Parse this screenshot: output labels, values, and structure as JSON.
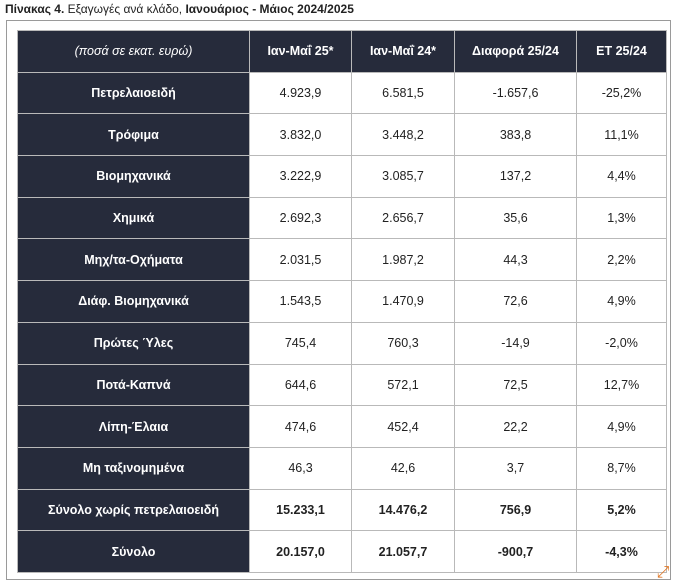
{
  "caption": {
    "prefix": "Πίνακας 4.",
    "middle": " Εξαγωγές ανά κλάδο, ",
    "period": "Ιανουάριος - Μάιος 2024/2025"
  },
  "table": {
    "headers": [
      "(ποσά σε εκατ. ευρώ)",
      "Ιαν-Μαΐ 25*",
      "Ιαν-Μαΐ 24*",
      "Διαφορά 25/24",
      "ΕΤ 25/24"
    ],
    "rows": [
      {
        "label": "Πετρελαιοειδή",
        "v1": "4.923,9",
        "v2": "6.581,5",
        "diff": "-1.657,6",
        "et": "-25,2%"
      },
      {
        "label": "Τρόφιμα",
        "v1": "3.832,0",
        "v2": "3.448,2",
        "diff": "383,8",
        "et": "11,1%"
      },
      {
        "label": "Βιομηχανικά",
        "v1": "3.222,9",
        "v2": "3.085,7",
        "diff": "137,2",
        "et": "4,4%"
      },
      {
        "label": "Χημικά",
        "v1": "2.692,3",
        "v2": "2.656,7",
        "diff": "35,6",
        "et": "1,3%"
      },
      {
        "label": "Μηχ/τα-Οχήματα",
        "v1": "2.031,5",
        "v2": "1.987,2",
        "diff": "44,3",
        "et": "2,2%"
      },
      {
        "label": "Διάφ. Βιομηχανικά",
        "v1": "1.543,5",
        "v2": "1.470,9",
        "diff": "72,6",
        "et": "4,9%"
      },
      {
        "label": "Πρώτες Ύλες",
        "v1": "745,4",
        "v2": "760,3",
        "diff": "-14,9",
        "et": "-2,0%"
      },
      {
        "label": "Ποτά-Καπνά",
        "v1": "644,6",
        "v2": "572,1",
        "diff": "72,5",
        "et": "12,7%"
      },
      {
        "label": "Λίπη-Έλαια",
        "v1": "474,6",
        "v2": "452,4",
        "diff": "22,2",
        "et": "4,9%"
      },
      {
        "label": "Μη ταξινομημένα",
        "v1": "46,3",
        "v2": "42,6",
        "diff": "3,7",
        "et": "8,7%"
      }
    ],
    "totals": [
      {
        "label": "Σύνολο χωρίς πετρελαιοειδή",
        "v1": "15.233,1",
        "v2": "14.476,2",
        "diff": "756,9",
        "et": "5,2%"
      },
      {
        "label": "Σύνολο",
        "v1": "20.157,0",
        "v2": "21.057,7",
        "diff": "-900,7",
        "et": "-4,3%"
      }
    ]
  },
  "icons": {
    "expand": "expand-arrows-icon"
  },
  "colors": {
    "header_bg": "#262b3b",
    "header_text": "#ffffff",
    "accent": "#e07a2a"
  }
}
